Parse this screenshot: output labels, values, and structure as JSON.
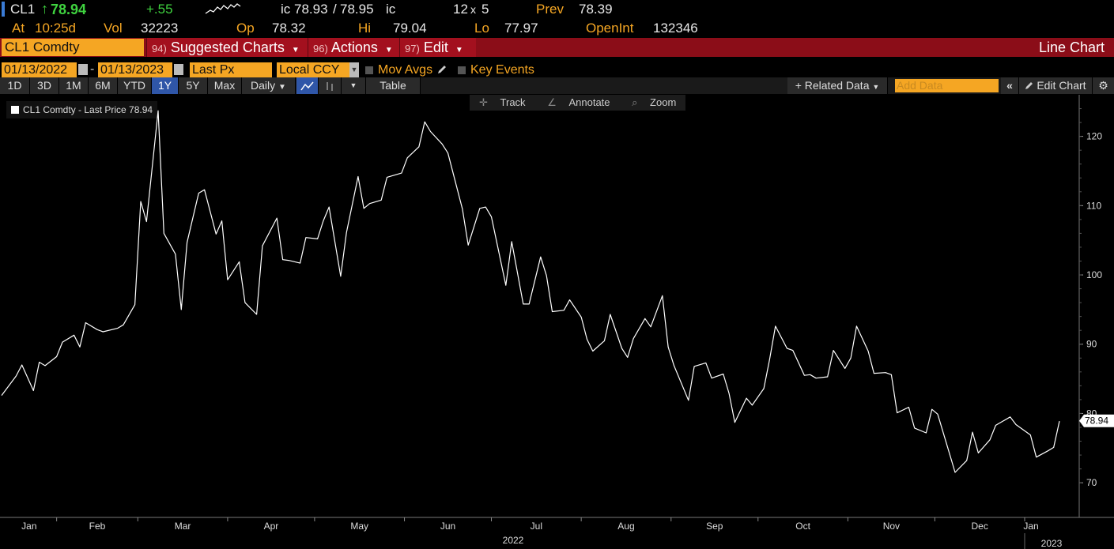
{
  "quote": {
    "ticker": "CL1",
    "arrow": "↑",
    "last": "78.94",
    "change": "+.55",
    "ic_label": "ic",
    "bid": "78.93",
    "sep": "/",
    "ask": "78.95",
    "ic_suffix": "ic",
    "size": "12",
    "size_x": "x",
    "size2": "5",
    "prev_label": "Prev",
    "prev": "78.39",
    "at_label": "At",
    "time": "10:25d",
    "vol_label": "Vol",
    "vol": "32223",
    "op_label": "Op",
    "op": "78.32",
    "hi_label": "Hi",
    "hi": "79.04",
    "lo_label": "Lo",
    "lo": "77.97",
    "oi_label": "OpenInt",
    "oi": "132346"
  },
  "menubar": {
    "security": "CL1 Comdty",
    "suggested_num": "94)",
    "suggested": "Suggested Charts",
    "actions_num": "96)",
    "actions": "Actions",
    "edit_num": "97)",
    "edit": "Edit",
    "chart_type": "Line Chart"
  },
  "controls": {
    "start_date": "01/13/2022",
    "dash": "-",
    "end_date": "01/13/2023",
    "field": "Last Px",
    "currency": "Local CCY",
    "mov_avgs": "Mov Avgs",
    "key_events": "Key Events"
  },
  "ranges": [
    "1D",
    "3D",
    "1M",
    "6M",
    "YTD",
    "1Y",
    "5Y",
    "Max"
  ],
  "selected_range": "1Y",
  "toolbar": {
    "frequency": "Daily",
    "table": "Table",
    "related": "Related Data",
    "add_placeholder": "Add Data",
    "edit_chart": "Edit Chart"
  },
  "tools": {
    "track": "Track",
    "annotate": "Annotate",
    "zoom": "Zoom"
  },
  "legend": "CL1 Comdty - Last Price 78.94",
  "colors": {
    "amber": "#f5a623",
    "red_bar": "#8b0d18",
    "line": "#ffffff",
    "up": "#3fd23f"
  },
  "chart_data": {
    "type": "line",
    "series_label": "CL1 Comdty - Last Price",
    "ylim": [
      65,
      126
    ],
    "yticks": [
      70,
      80,
      90,
      100,
      110,
      120
    ],
    "last_value": "78.94",
    "month_labels": [
      "Jan",
      "Feb",
      "Mar",
      "Apr",
      "May",
      "Jun",
      "Jul",
      "Aug",
      "Sep",
      "Oct",
      "Nov",
      "Dec",
      "Jan"
    ],
    "year_labels": [
      "2022",
      "2023"
    ],
    "x": [
      "2022-01-13",
      "2022-01-18",
      "2022-01-20",
      "2022-01-24",
      "2022-01-26",
      "2022-01-28",
      "2022-02-01",
      "2022-02-03",
      "2022-02-07",
      "2022-02-09",
      "2022-02-11",
      "2022-02-15",
      "2022-02-17",
      "2022-02-22",
      "2022-02-24",
      "2022-02-28",
      "2022-03-02",
      "2022-03-04",
      "2022-03-08",
      "2022-03-10",
      "2022-03-14",
      "2022-03-16",
      "2022-03-18",
      "2022-03-22",
      "2022-03-24",
      "2022-03-28",
      "2022-03-30",
      "2022-04-01",
      "2022-04-05",
      "2022-04-07",
      "2022-04-11",
      "2022-04-13",
      "2022-04-18",
      "2022-04-20",
      "2022-04-22",
      "2022-04-26",
      "2022-04-28",
      "2022-05-02",
      "2022-05-04",
      "2022-05-06",
      "2022-05-10",
      "2022-05-12",
      "2022-05-16",
      "2022-05-18",
      "2022-05-20",
      "2022-05-24",
      "2022-05-26",
      "2022-05-31",
      "2022-06-02",
      "2022-06-06",
      "2022-06-08",
      "2022-06-10",
      "2022-06-14",
      "2022-06-16",
      "2022-06-21",
      "2022-06-23",
      "2022-06-27",
      "2022-06-29",
      "2022-07-01",
      "2022-07-06",
      "2022-07-08",
      "2022-07-12",
      "2022-07-14",
      "2022-07-18",
      "2022-07-20",
      "2022-07-22",
      "2022-07-26",
      "2022-07-28",
      "2022-08-01",
      "2022-08-03",
      "2022-08-05",
      "2022-08-09",
      "2022-08-11",
      "2022-08-15",
      "2022-08-17",
      "2022-08-19",
      "2022-08-23",
      "2022-08-25",
      "2022-08-29",
      "2022-08-31",
      "2022-09-02",
      "2022-09-07",
      "2022-09-09",
      "2022-09-13",
      "2022-09-15",
      "2022-09-19",
      "2022-09-21",
      "2022-09-23",
      "2022-09-27",
      "2022-09-29",
      "2022-10-03",
      "2022-10-05",
      "2022-10-07",
      "2022-10-11",
      "2022-10-13",
      "2022-10-17",
      "2022-10-19",
      "2022-10-21",
      "2022-10-25",
      "2022-10-27",
      "2022-10-31",
      "2022-11-02",
      "2022-11-04",
      "2022-11-08",
      "2022-11-10",
      "2022-11-14",
      "2022-11-16",
      "2022-11-18",
      "2022-11-22",
      "2022-11-24",
      "2022-11-28",
      "2022-11-30",
      "2022-12-02",
      "2022-12-06",
      "2022-12-08",
      "2022-12-12",
      "2022-12-14",
      "2022-12-16",
      "2022-12-20",
      "2022-12-22",
      "2022-12-27",
      "2022-12-29",
      "2023-01-03",
      "2023-01-05",
      "2023-01-09",
      "2023-01-11",
      "2023-01-13"
    ],
    "y": [
      82.6,
      85.4,
      87.0,
      83.3,
      87.4,
      86.9,
      88.2,
      90.3,
      91.3,
      89.6,
      93.1,
      92.1,
      91.8,
      92.3,
      92.8,
      95.7,
      110.6,
      107.7,
      123.7,
      106.0,
      103.0,
      95.0,
      104.7,
      111.8,
      112.3,
      105.9,
      107.8,
      99.3,
      101.9,
      96.0,
      94.3,
      104.2,
      108.2,
      102.2,
      102.1,
      101.7,
      105.4,
      105.2,
      107.8,
      109.8,
      99.8,
      106.1,
      114.2,
      109.6,
      110.3,
      110.8,
      114.1,
      114.7,
      116.9,
      118.5,
      122.1,
      120.7,
      118.9,
      117.6,
      109.5,
      104.3,
      109.6,
      109.8,
      108.4,
      98.5,
      104.8,
      95.8,
      95.8,
      102.6,
      99.9,
      94.7,
      94.9,
      96.4,
      93.9,
      90.7,
      89.0,
      90.5,
      94.3,
      89.4,
      88.1,
      90.8,
      93.7,
      92.5,
      97.0,
      89.6,
      86.9,
      81.9,
      86.8,
      87.3,
      85.1,
      85.7,
      82.9,
      78.7,
      82.2,
      81.2,
      83.6,
      87.8,
      92.6,
      89.4,
      89.1,
      85.5,
      85.6,
      85.1,
      85.3,
      89.1,
      86.5,
      88.0,
      92.6,
      89.0,
      85.8,
      85.9,
      85.6,
      80.1,
      80.9,
      77.9,
      77.2,
      80.6,
      79.9,
      74.3,
      71.5,
      73.2,
      77.3,
      74.3,
      76.2,
      78.3,
      79.5,
      78.4,
      76.9,
      73.7,
      74.6,
      75.1,
      78.9
    ]
  }
}
